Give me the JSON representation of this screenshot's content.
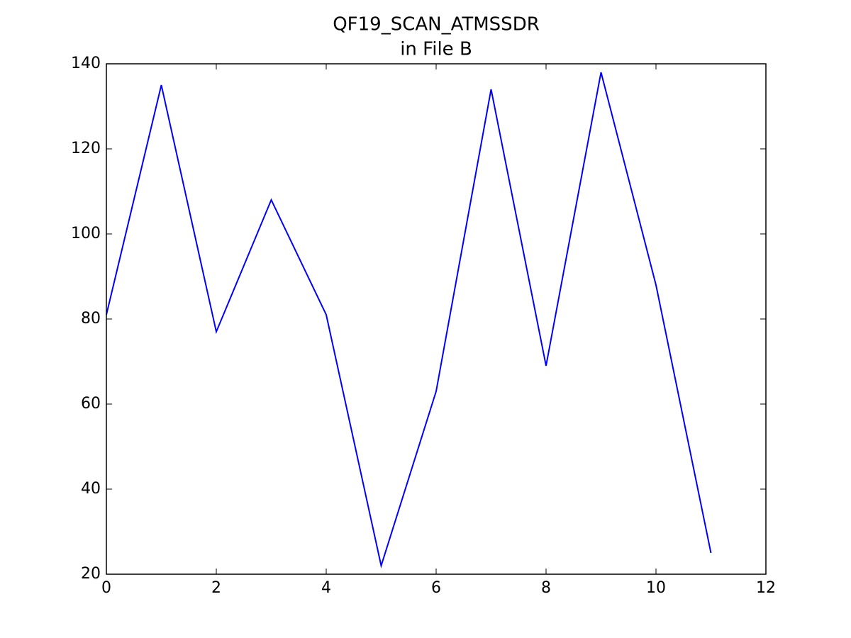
{
  "chart_data": {
    "type": "line",
    "title": "QF19_SCAN_ATMSSDR",
    "subtitle": "in File B",
    "x": [
      0,
      1,
      2,
      3,
      4,
      5,
      6,
      7,
      8,
      9,
      10,
      11
    ],
    "series": [
      {
        "color": "#0000ff",
        "values": [
          81,
          135,
          77,
          108,
          81,
          22,
          63,
          134,
          69,
          138,
          88,
          25
        ]
      }
    ],
    "xlim": [
      0,
      12
    ],
    "xticks": [
      0,
      2,
      4,
      6,
      8,
      10,
      12
    ],
    "ylim": [
      20,
      140
    ],
    "yticks": [
      20,
      40,
      60,
      80,
      100,
      120,
      140
    ]
  }
}
